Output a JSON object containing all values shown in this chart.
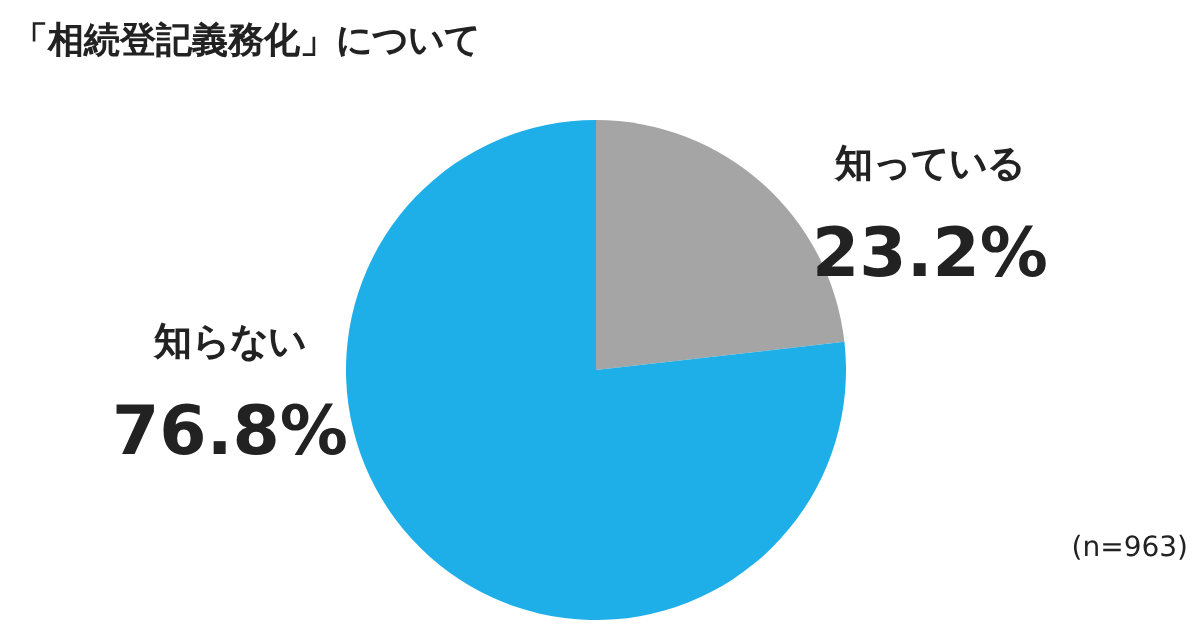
{
  "chart_data": {
    "type": "pie",
    "title": "「相続登記義務化」について",
    "categories": [
      "知っている",
      "知らない"
    ],
    "values": [
      23.2,
      76.8
    ],
    "value_labels": [
      "23.2%",
      "76.8%"
    ],
    "colors": [
      "#a5a5a5",
      "#1eaee8"
    ],
    "annotations": [
      "(n=963)"
    ]
  }
}
